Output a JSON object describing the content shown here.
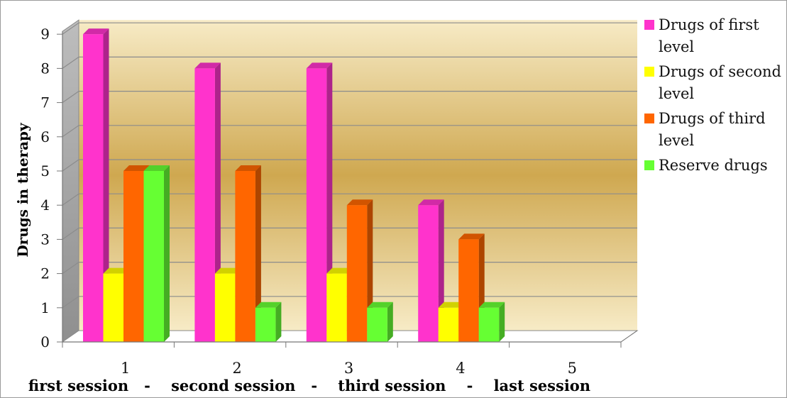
{
  "chart_data": {
    "type": "bar",
    "categories": [
      "1",
      "2",
      "3",
      "4",
      "5"
    ],
    "series": [
      {
        "name": "Drugs of first level",
        "values": [
          9,
          8,
          8,
          4,
          0
        ],
        "color": "#ff33cc"
      },
      {
        "name": "Drugs of second level",
        "values": [
          2,
          2,
          2,
          1,
          0
        ],
        "color": "#ffff00"
      },
      {
        "name": "Drugs of third level",
        "values": [
          5,
          5,
          4,
          3,
          0
        ],
        "color": "#ff6600"
      },
      {
        "name": "Reserve drugs",
        "values": [
          5,
          1,
          1,
          1,
          0
        ],
        "color": "#66ff33"
      }
    ],
    "title": "",
    "xlabel": "first session   -    second session   -    third session    -    last session",
    "ylabel": "Drugs in therapy",
    "ylim": [
      0,
      9
    ],
    "yticks": [
      "0",
      "1",
      "2",
      "3",
      "4",
      "5",
      "6",
      "7",
      "8",
      "9"
    ],
    "grid": true,
    "legend": {
      "placement": "right",
      "entries": [
        {
          "lines": [
            "Drugs of first",
            "level"
          ]
        },
        {
          "lines": [
            "Drugs of second",
            "level"
          ]
        },
        {
          "lines": [
            "Drugs of third",
            "level"
          ]
        },
        {
          "lines": [
            "Reserve drugs"
          ]
        }
      ]
    },
    "wall_color_light": "#f7ebc6",
    "wall_color_dark": "#cfa850"
  }
}
